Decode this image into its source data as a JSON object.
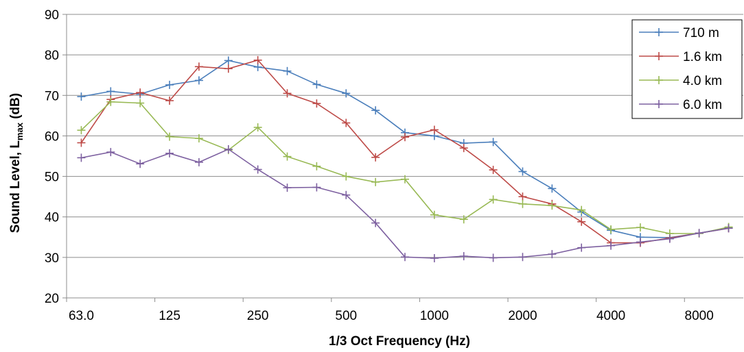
{
  "chart_data": {
    "type": "line",
    "xlabel": "1/3 Oct Frequency (Hz)",
    "ylabel": {
      "prefix": "Sound Level, L",
      "sub": "max",
      "suffix": " (dB)"
    },
    "ylim": [
      20,
      90
    ],
    "yticks": [
      20,
      30,
      40,
      50,
      60,
      70,
      80,
      90
    ],
    "x_tick_labels": [
      "63.0",
      "125",
      "250",
      "500",
      "1000",
      "2000",
      "4000",
      "8000"
    ],
    "x": [
      "63",
      "80",
      "100",
      "125",
      "160",
      "200",
      "250",
      "315",
      "400",
      "500",
      "630",
      "800",
      "1000",
      "1250",
      "1600",
      "2000",
      "2500",
      "3150",
      "4000",
      "5000",
      "6300",
      "8000",
      "10000"
    ],
    "grid": "horizontal",
    "legend": "top-right",
    "series": [
      {
        "name": "710 m",
        "color": "#4a7ebb",
        "values": [
          69.7,
          71.0,
          70.3,
          72.6,
          73.7,
          78.6,
          77.0,
          76.0,
          72.7,
          70.5,
          66.3,
          60.8,
          60.0,
          58.2,
          58.5,
          51.2,
          47.0,
          41.2,
          36.7,
          35.0,
          34.9,
          36.0,
          37.3
        ]
      },
      {
        "name": "1.6 km",
        "color": "#be4b48",
        "values": [
          58.3,
          69.0,
          70.7,
          68.7,
          77.1,
          76.6,
          78.7,
          70.5,
          68.0,
          63.2,
          54.7,
          59.7,
          61.5,
          57.0,
          51.6,
          45.0,
          43.2,
          38.8,
          33.6,
          33.6,
          34.8,
          36.0,
          37.2
        ]
      },
      {
        "name": "4.0 km",
        "color": "#98b954",
        "values": [
          61.4,
          68.4,
          68.1,
          59.8,
          59.4,
          56.5,
          62.1,
          54.9,
          52.5,
          50.0,
          48.6,
          49.3,
          40.5,
          39.4,
          44.3,
          43.2,
          42.8,
          41.7,
          36.9,
          37.4,
          35.9,
          35.9,
          37.5
        ]
      },
      {
        "name": "6.0 km",
        "color": "#7d60a0",
        "values": [
          54.6,
          56.0,
          53.1,
          55.7,
          53.5,
          56.7,
          51.7,
          47.2,
          47.3,
          45.4,
          38.5,
          30.1,
          29.8,
          30.3,
          29.9,
          30.1,
          30.8,
          32.4,
          32.9,
          33.8,
          34.6,
          36.0,
          37.2
        ]
      }
    ]
  }
}
